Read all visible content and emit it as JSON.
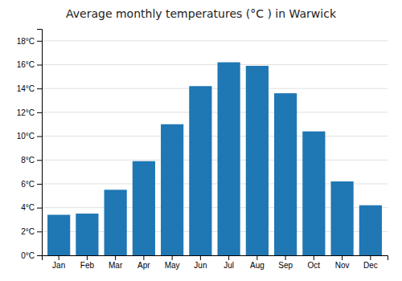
{
  "chart_data": {
    "type": "bar",
    "title": "Average monthly temperatures (°C ) in Warwick",
    "categories": [
      "Jan",
      "Feb",
      "Mar",
      "Apr",
      "May",
      "Jun",
      "Jul",
      "Aug",
      "Sep",
      "Oct",
      "Nov",
      "Dec"
    ],
    "values": [
      3.4,
      3.5,
      5.5,
      7.9,
      11.0,
      14.2,
      16.2,
      15.9,
      13.6,
      10.4,
      6.2,
      4.2
    ],
    "ylim": [
      0,
      19.0
    ],
    "yticks": [
      {
        "value": 0,
        "label": "0°C"
      },
      {
        "value": 2,
        "label": "2°C"
      },
      {
        "value": 4,
        "label": "4°C"
      },
      {
        "value": 6,
        "label": "6°C"
      },
      {
        "value": 8,
        "label": "8°C"
      },
      {
        "value": 10,
        "label": "10°C"
      },
      {
        "value": 12,
        "label": "12°C"
      },
      {
        "value": 14,
        "label": "14°C"
      },
      {
        "value": 16,
        "label": "16°C"
      },
      {
        "value": 18,
        "label": "18°C"
      }
    ],
    "grid": true
  }
}
